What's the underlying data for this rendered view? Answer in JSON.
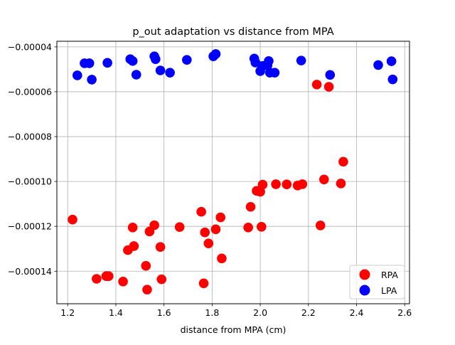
{
  "chart_data": {
    "type": "scatter",
    "title": "p_out adaptation vs distance from MPA",
    "xlabel": "distance from MPA (cm)",
    "ylabel": "",
    "xlim": [
      1.155,
      2.62
    ],
    "ylim": [
      -0.0001545,
      -3.75e-05
    ],
    "x_ticks": [
      1.2,
      1.4,
      1.6,
      1.8,
      2.0,
      2.2,
      2.4,
      2.6
    ],
    "x_tick_labels": [
      "1.2",
      "1.4",
      "1.6",
      "1.8",
      "2.0",
      "2.2",
      "2.4",
      "2.6"
    ],
    "y_ticks": [
      -0.00014,
      -0.00012,
      -0.0001,
      -8e-05,
      -6e-05,
      -4e-05
    ],
    "y_tick_labels": [
      "−0.00014",
      "−0.00012",
      "−0.00010",
      "−0.00008",
      "−0.00006",
      "−0.00004"
    ],
    "grid": true,
    "legend_position": "lower-right",
    "series": [
      {
        "name": "RPA",
        "color": "#ff0000",
        "points": [
          [
            1.22,
            -0.000117
          ],
          [
            1.32,
            -0.0001434
          ],
          [
            1.36,
            -0.0001422
          ],
          [
            1.37,
            -0.0001422
          ],
          [
            1.43,
            -0.0001446
          ],
          [
            1.45,
            -0.0001306
          ],
          [
            1.47,
            -0.0001205
          ],
          [
            1.475,
            -0.0001288
          ],
          [
            1.525,
            -0.0001376
          ],
          [
            1.53,
            -0.0001482
          ],
          [
            1.54,
            -0.0001223
          ],
          [
            1.56,
            -0.0001195
          ],
          [
            1.585,
            -0.0001292
          ],
          [
            1.59,
            -0.0001436
          ],
          [
            1.665,
            -0.0001203
          ],
          [
            1.755,
            -0.0001135
          ],
          [
            1.765,
            -0.0001454
          ],
          [
            1.77,
            -0.0001227
          ],
          [
            1.785,
            -0.0001276
          ],
          [
            1.815,
            -0.0001213
          ],
          [
            1.835,
            -0.000116
          ],
          [
            1.84,
            -0.0001343
          ],
          [
            1.95,
            -0.0001205
          ],
          [
            1.96,
            -0.0001113
          ],
          [
            1.985,
            -0.0001042
          ],
          [
            2.0,
            -0.0001046
          ],
          [
            2.005,
            -0.0001202
          ],
          [
            2.01,
            -0.0001014
          ],
          [
            2.065,
            -0.0001012
          ],
          [
            2.11,
            -0.0001013
          ],
          [
            2.155,
            -0.0001018
          ],
          [
            2.175,
            -0.0001012
          ],
          [
            2.25,
            -0.0001196
          ],
          [
            2.265,
            -9.91e-05
          ],
          [
            2.335,
            -0.0001009
          ],
          [
            2.345,
            -9.12e-05
          ],
          [
            2.235,
            -5.68e-05
          ],
          [
            2.285,
            -5.78e-05
          ]
        ]
      },
      {
        "name": "LPA",
        "color": "#0000ff",
        "points": [
          [
            1.24,
            -5.27e-05
          ],
          [
            1.27,
            -4.73e-05
          ],
          [
            1.29,
            -4.73e-05
          ],
          [
            1.3,
            -5.46e-05
          ],
          [
            1.365,
            -4.71e-05
          ],
          [
            1.46,
            -4.55e-05
          ],
          [
            1.47,
            -4.63e-05
          ],
          [
            1.485,
            -5.24e-05
          ],
          [
            1.56,
            -4.42e-05
          ],
          [
            1.565,
            -4.55e-05
          ],
          [
            1.585,
            -5.05e-05
          ],
          [
            1.625,
            -5.15e-05
          ],
          [
            1.695,
            -4.58e-05
          ],
          [
            1.805,
            -4.42e-05
          ],
          [
            1.815,
            -4.32e-05
          ],
          [
            1.975,
            -4.52e-05
          ],
          [
            1.98,
            -4.7e-05
          ],
          [
            2.0,
            -5.08e-05
          ],
          [
            2.01,
            -4.85e-05
          ],
          [
            2.03,
            -4.83e-05
          ],
          [
            2.035,
            -4.63e-05
          ],
          [
            2.04,
            -5.15e-05
          ],
          [
            2.06,
            -5.15e-05
          ],
          [
            2.17,
            -4.61e-05
          ],
          [
            2.29,
            -5.25e-05
          ],
          [
            2.49,
            -4.81e-05
          ],
          [
            2.545,
            -4.64e-05
          ],
          [
            2.55,
            -5.45e-05
          ]
        ]
      }
    ]
  }
}
